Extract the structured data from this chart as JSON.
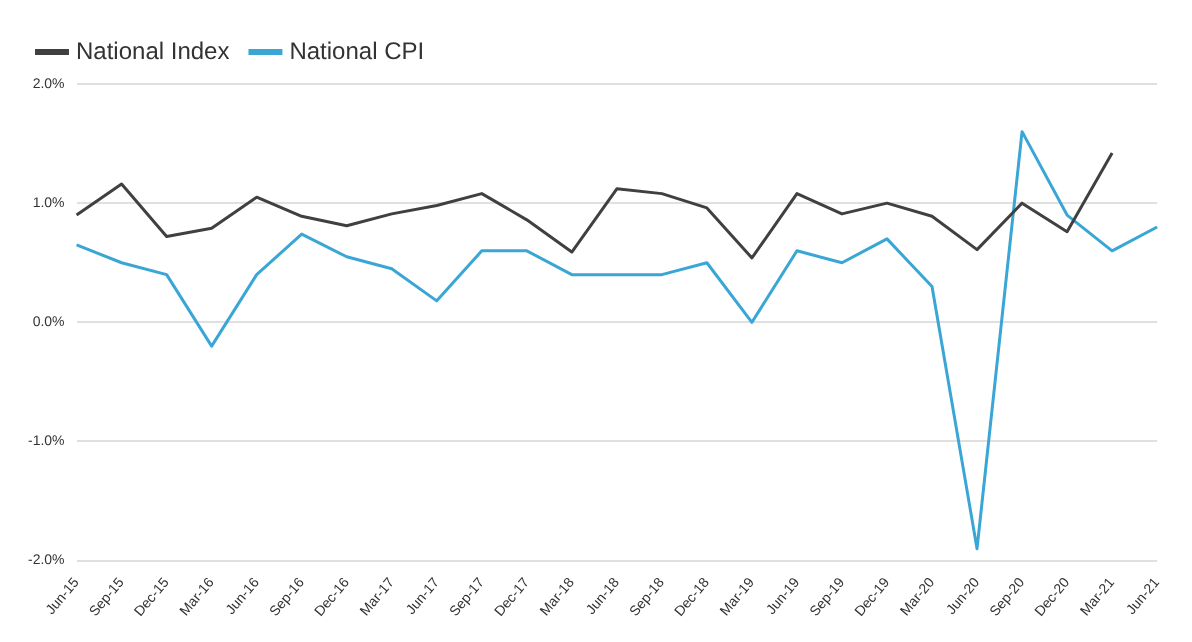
{
  "chart_data": {
    "type": "line",
    "categories": [
      "Jun-15",
      "Sep-15",
      "Dec-15",
      "Mar-16",
      "Jun-16",
      "Sep-16",
      "Dec-16",
      "Mar-17",
      "Jun-17",
      "Sep-17",
      "Dec-17",
      "Mar-18",
      "Jun-18",
      "Sep-18",
      "Dec-18",
      "Mar-19",
      "Jun-19",
      "Sep-19",
      "Dec-19",
      "Mar-20",
      "Jun-20",
      "Sep-20",
      "Dec-20",
      "Mar-21",
      "Jun-21"
    ],
    "series": [
      {
        "name": "National Index",
        "color": "#404040",
        "values": [
          0.9,
          1.16,
          0.72,
          0.79,
          1.05,
          0.89,
          0.81,
          0.91,
          0.98,
          1.08,
          0.86,
          0.59,
          1.12,
          1.08,
          0.96,
          0.54,
          1.08,
          0.91,
          1.0,
          0.89,
          0.61,
          1.0,
          0.76,
          1.42,
          null
        ]
      },
      {
        "name": "National CPI",
        "color": "#3aa6d6",
        "values": [
          0.65,
          0.5,
          0.4,
          -0.2,
          0.4,
          0.74,
          0.55,
          0.45,
          0.18,
          0.6,
          0.6,
          0.4,
          0.4,
          0.4,
          0.5,
          0.0,
          0.6,
          0.5,
          0.7,
          0.3,
          -1.9,
          1.6,
          0.9,
          0.6,
          0.8
        ]
      }
    ],
    "ylim": [
      -2,
      2
    ],
    "yticks": [
      {
        "value": -2,
        "label": "-2.0%"
      },
      {
        "value": -1,
        "label": "-1.0%"
      },
      {
        "value": 0,
        "label": "0.0%"
      },
      {
        "value": 1,
        "label": "1.0%"
      },
      {
        "value": 2,
        "label": "2.0%"
      }
    ],
    "grid": "y",
    "legend": "top left",
    "marker": "none",
    "line_style": "solid"
  }
}
